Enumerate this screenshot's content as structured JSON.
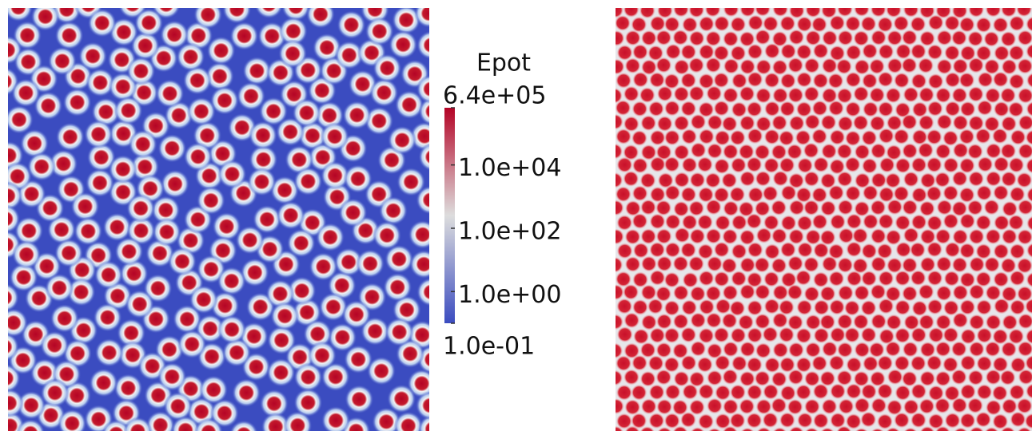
{
  "chart_data": {
    "type": "colorbar",
    "title": "Epot",
    "log_scale": true,
    "ylim": [
      0.1,
      640000
    ],
    "yticks": [
      {
        "value": 640000,
        "label": "6.4e+05"
      },
      {
        "value": 10000,
        "label": "1.0e+04"
      },
      {
        "value": 100,
        "label": "1.0e+02"
      },
      {
        "value": 1,
        "label": "1.0e+00"
      },
      {
        "value": 0.1,
        "label": "1.0e-01"
      }
    ],
    "colormap": [
      "#3b4cc0",
      "#dddddd",
      "#b40426"
    ]
  }
}
